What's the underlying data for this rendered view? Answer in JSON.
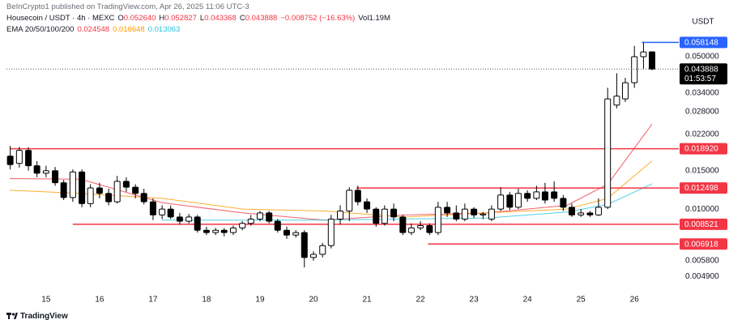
{
  "chart_data": {
    "type": "candlestick",
    "subtitle": "BeInCrypto1 published on TradingView.com, Apr 26, 2025 11:06 UTC-3",
    "title": "Housecoin / USDT · 4h · MEXC",
    "ohlc_legend": [
      {
        "key": "O",
        "text": "0.052640"
      },
      {
        "key": "H",
        "text": "0.052827"
      },
      {
        "key": "L",
        "text": "0.043368"
      },
      {
        "key": "C",
        "text": "0.043888"
      }
    ],
    "change": "−0.008752 (−16.63%)",
    "volume_key": "Vol",
    "volume": "1.19M",
    "indicator": "EMA 20/50/100/200",
    "currency": "USDT",
    "brand": "TradingView",
    "log_scale": true,
    "grid": false,
    "up_color": "#ffffff",
    "down_color": "#000000",
    "xlim": [
      14.26,
      26.83
    ],
    "xticks": [
      15,
      16,
      17,
      18,
      19,
      20,
      21,
      22,
      23,
      24,
      25,
      26
    ],
    "ylim": [
      0.00384,
      0.085
    ],
    "yticks": [
      {
        "value": 0.05,
        "label": "0.050000"
      },
      {
        "value": 0.034,
        "label": "0.034000"
      },
      {
        "value": 0.028,
        "label": "0.028000"
      },
      {
        "value": 0.022,
        "label": "0.022000"
      },
      {
        "value": 0.015,
        "label": "0.015000"
      },
      {
        "value": 0.01,
        "label": "0.010000"
      },
      {
        "value": 0.0058,
        "label": "0.005800"
      },
      {
        "value": 0.0049,
        "label": "0.004900"
      }
    ],
    "x": [
      14.33,
      14.5,
      14.67,
      14.83,
      15,
      15.17,
      15.33,
      15.5,
      15.67,
      15.83,
      16,
      16.17,
      16.33,
      16.5,
      16.67,
      16.83,
      17,
      17.17,
      17.33,
      17.5,
      17.67,
      17.83,
      18,
      18.17,
      18.33,
      18.5,
      18.67,
      18.83,
      19,
      19.17,
      19.33,
      19.5,
      19.67,
      19.83,
      20,
      20.17,
      20.33,
      20.5,
      20.67,
      20.83,
      21,
      21.17,
      21.33,
      21.5,
      21.67,
      21.83,
      22,
      22.17,
      22.33,
      22.5,
      22.67,
      22.83,
      23,
      23.17,
      23.33,
      23.5,
      23.67,
      23.83,
      24,
      24.17,
      24.33,
      24.5,
      24.67,
      24.83,
      25,
      25.17,
      25.33,
      25.5,
      25.67,
      25.83,
      26,
      26.17,
      26.33
    ],
    "open": [
      0.0175,
      0.0162,
      0.0186,
      0.0158,
      0.0146,
      0.015,
      0.0132,
      0.0113,
      0.0148,
      0.0106,
      0.0125,
      0.0118,
      0.0108,
      0.0134,
      0.0126,
      0.0118,
      0.0108,
      0.0094,
      0.01,
      0.0092,
      0.0088,
      0.0092,
      0.008,
      0.0078,
      0.008,
      0.0078,
      0.0082,
      0.0086,
      0.009,
      0.0096,
      0.0088,
      0.008,
      0.0076,
      0.0078,
      0.006,
      0.0062,
      0.0068,
      0.009,
      0.0098,
      0.0122,
      0.0108,
      0.01,
      0.0086,
      0.01,
      0.0092,
      0.0078,
      0.0082,
      0.0084,
      0.0078,
      0.0102,
      0.0096,
      0.009,
      0.01,
      0.0094,
      0.009,
      0.01,
      0.0116,
      0.0102,
      0.0118,
      0.0112,
      0.012,
      0.012,
      0.0112,
      0.0102,
      0.0094,
      0.0096,
      0.0094,
      0.0102,
      0.03,
      0.032,
      0.038,
      0.05,
      0.05264
    ],
    "high": [
      0.0195,
      0.0193,
      0.0192,
      0.0166,
      0.0158,
      0.0156,
      0.0136,
      0.0152,
      0.0152,
      0.013,
      0.0132,
      0.0124,
      0.0142,
      0.014,
      0.013,
      0.0124,
      0.0112,
      0.0104,
      0.0104,
      0.0096,
      0.0095,
      0.0094,
      0.0083,
      0.0082,
      0.0082,
      0.0084,
      0.0088,
      0.0094,
      0.0098,
      0.0098,
      0.009,
      0.0083,
      0.008,
      0.008,
      0.0064,
      0.007,
      0.0094,
      0.0104,
      0.0126,
      0.0128,
      0.0112,
      0.0102,
      0.0104,
      0.0106,
      0.0094,
      0.0086,
      0.0088,
      0.0086,
      0.0108,
      0.0108,
      0.0104,
      0.0106,
      0.0102,
      0.0097,
      0.0104,
      0.0126,
      0.012,
      0.0124,
      0.0122,
      0.0128,
      0.0132,
      0.0134,
      0.0116,
      0.0106,
      0.01,
      0.0098,
      0.0112,
      0.036,
      0.042,
      0.04,
      0.056,
      0.0581,
      0.052827
    ],
    "low": [
      0.0152,
      0.0155,
      0.015,
      0.014,
      0.014,
      0.0128,
      0.011,
      0.0108,
      0.0102,
      0.0102,
      0.0112,
      0.0104,
      0.0106,
      0.012,
      0.0112,
      0.0105,
      0.0089,
      0.009,
      0.009,
      0.0085,
      0.0086,
      0.0078,
      0.0076,
      0.0076,
      0.0075,
      0.0076,
      0.008,
      0.0084,
      0.0088,
      0.0086,
      0.0078,
      0.0073,
      0.0074,
      0.0054,
      0.0058,
      0.006,
      0.0066,
      0.0085,
      0.0088,
      0.0104,
      0.0096,
      0.0083,
      0.0084,
      0.0088,
      0.0076,
      0.0076,
      0.008,
      0.0076,
      0.0076,
      0.0092,
      0.0088,
      0.0088,
      0.0091,
      0.009,
      0.0088,
      0.0098,
      0.0099,
      0.01,
      0.0108,
      0.011,
      0.0106,
      0.0108,
      0.0098,
      0.0092,
      0.0092,
      0.0092,
      0.0093,
      0.01,
      0.029,
      0.031,
      0.036,
      0.044,
      0.043368
    ],
    "close": [
      0.016,
      0.0186,
      0.0158,
      0.0146,
      0.015,
      0.0132,
      0.0113,
      0.0148,
      0.0106,
      0.0125,
      0.0118,
      0.0108,
      0.0134,
      0.0126,
      0.0118,
      0.0108,
      0.0094,
      0.01,
      0.0092,
      0.0088,
      0.0092,
      0.008,
      0.0078,
      0.008,
      0.0078,
      0.0082,
      0.0086,
      0.009,
      0.0096,
      0.0088,
      0.008,
      0.0076,
      0.0078,
      0.006,
      0.0062,
      0.0068,
      0.009,
      0.0098,
      0.0122,
      0.0108,
      0.01,
      0.0086,
      0.01,
      0.0092,
      0.0078,
      0.0082,
      0.0084,
      0.0078,
      0.0102,
      0.0096,
      0.009,
      0.01,
      0.0094,
      0.0095,
      0.01,
      0.0116,
      0.0102,
      0.0118,
      0.0112,
      0.012,
      0.011,
      0.0112,
      0.0102,
      0.0094,
      0.0096,
      0.0094,
      0.0102,
      0.032,
      0.033,
      0.038,
      0.05,
      0.0526,
      0.043888
    ],
    "ema_x": [
      14.32,
      15.65,
      17.17,
      18.68,
      20.2,
      21.71,
      23.23,
      24.74,
      25.5,
      26.33
    ],
    "emas": [
      {
        "color": "#f23645",
        "label": "0.024548",
        "values": [
          0.0138,
          0.0137,
          0.0107,
          0.0096,
          0.0089,
          0.0094,
          0.0096,
          0.0104,
          0.013,
          0.024548
        ]
      },
      {
        "color": "#ff9800",
        "label": "0.016648",
        "values": [
          0.0122,
          0.0118,
          0.0112,
          0.01,
          0.0098,
          0.0092,
          0.0096,
          0.01,
          0.0112,
          0.016648
        ]
      },
      {
        "color": "#26c6da",
        "label": "0.013063",
        "values": [
          null,
          null,
          0.0089,
          0.0089,
          0.0089,
          0.009,
          0.0091,
          0.0097,
          0.0105,
          0.013063
        ]
      }
    ],
    "levels": [
      {
        "value": 0.058148,
        "label": "0.058148",
        "color": "#2962ff",
        "from": 26.14
      },
      {
        "value": 0.01892,
        "label": "0.018920",
        "color": "#f23645",
        "from": 14.32
      },
      {
        "value": 0.012498,
        "label": "0.012498",
        "color": "#f23645",
        "from": 20.8
      },
      {
        "value": 0.008521,
        "label": "0.008521",
        "color": "#f23645",
        "from": 15.5
      },
      {
        "value": 0.006918,
        "label": "0.006918",
        "color": "#f23645",
        "from": 22.14
      }
    ],
    "last_price": {
      "value": 0.043888,
      "label": "0.043888",
      "countdown": "01:53:57"
    }
  }
}
